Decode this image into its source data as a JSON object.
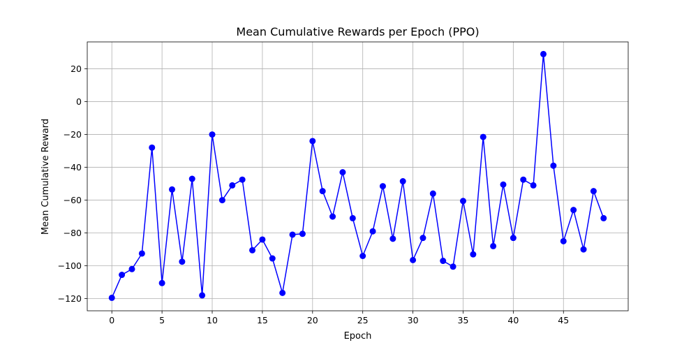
{
  "chart_data": {
    "type": "line",
    "title": "Mean Cumulative Rewards per Epoch (PPO)",
    "xlabel": "Epoch",
    "ylabel": "Mean Cumulative Reward",
    "xlim": [
      -2.45,
      51.45
    ],
    "ylim": [
      -127.4,
      36.4
    ],
    "xticks": [
      0,
      5,
      10,
      15,
      20,
      25,
      30,
      35,
      40,
      45
    ],
    "yticks": [
      -120,
      -100,
      -80,
      -60,
      -40,
      -20,
      0,
      20
    ],
    "grid": true,
    "legend": false,
    "series": [
      {
        "color": "#0000ff",
        "marker": "circle",
        "x": [
          0,
          1,
          2,
          3,
          4,
          5,
          6,
          7,
          8,
          9,
          10,
          11,
          12,
          13,
          14,
          15,
          16,
          17,
          18,
          19,
          20,
          21,
          22,
          23,
          24,
          25,
          26,
          27,
          28,
          29,
          30,
          31,
          32,
          33,
          34,
          35,
          36,
          37,
          38,
          39,
          40,
          41,
          42,
          43,
          44,
          45,
          46,
          47,
          48,
          49
        ],
        "y": [
          -119.5,
          -105.5,
          -102,
          -92.5,
          -28,
          -110.5,
          -53.5,
          -97.5,
          -47,
          -118,
          -20,
          -60,
          -51,
          -47.5,
          -90.5,
          -84,
          -95.5,
          -116.5,
          -81,
          -80.5,
          -24,
          -54.5,
          -70,
          -43,
          -71,
          -94,
          -79,
          -51.5,
          -83.5,
          -48.5,
          -96.5,
          -83,
          -56,
          -97,
          -100.5,
          -60.5,
          -93,
          -21.5,
          -88,
          -50.5,
          -83,
          -47.5,
          -51,
          29,
          -39,
          -85,
          -66,
          -90,
          -54.5,
          -71
        ]
      }
    ]
  }
}
